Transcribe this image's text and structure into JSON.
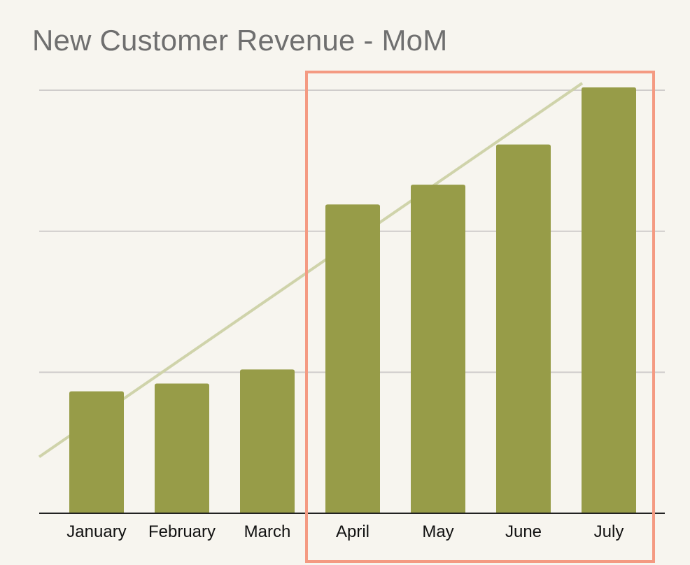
{
  "chart_data": {
    "type": "bar",
    "title": "New Customer Revenue - MoM",
    "xlabel": "",
    "ylabel": "",
    "categories": [
      "January",
      "February",
      "March",
      "April",
      "May",
      "June",
      "July"
    ],
    "values": [
      1.73,
      1.84,
      2.04,
      4.38,
      4.66,
      5.23,
      6.04
    ],
    "ylim": [
      0,
      6.05
    ],
    "gridlines": [
      2,
      4,
      6
    ],
    "trendline": {
      "start": 0.8,
      "end": 6.1
    },
    "highlight": {
      "from": "April",
      "to": "July",
      "color": "#f49a82"
    },
    "grid": true,
    "legend": "none",
    "colors": {
      "bar": "#979c48",
      "trend": "#cfd3aa",
      "grid": "#cfcccb",
      "axis": "#222222"
    }
  }
}
